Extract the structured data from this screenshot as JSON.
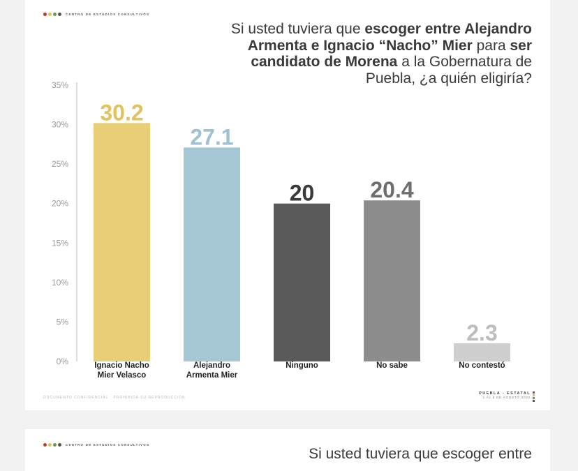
{
  "brand": {
    "name": "CENTRO DE ESTUDIOS CONSULTIVOS"
  },
  "title": {
    "prefix": "Si usted tuviera que ",
    "bold1": "escoger entre Alejandro Armenta e Ignacio “Nacho” Mier",
    "mid": " para ",
    "bold2": "ser candidato de Morena",
    "suffix": " a la Gobernatura de Puebla, ¿a quién eligiría?"
  },
  "footer": {
    "left": "DOCUMENTO CONFIDENCIAL · PROHIBIDA SU REPRODUCCIÓN",
    "right_line1": "PUEBLA - ESTATAL",
    "right_line2": "1 AL 5 DE AGOSTO 2022"
  },
  "next_slide": {
    "title_fragment": "Si usted tuviera que escoger entre"
  },
  "colors": {
    "brand_dots": [
      "#c0392b",
      "#e0c25a",
      "#6a9a4a",
      "#555555"
    ],
    "axis": "#bcbcbc",
    "label": "#222222"
  },
  "chart_data": {
    "type": "bar",
    "title": "Si usted tuviera que escoger entre Alejandro Armenta e Ignacio “Nacho” Mier para ser candidato de Morena a la Gobernatura de Puebla, ¿a quién eligiría?",
    "categories": [
      [
        "Ignacio Nacho",
        "Mier Velasco"
      ],
      [
        "Alejandro",
        "Armenta Mier"
      ],
      [
        "Ninguno"
      ],
      [
        "No sabe"
      ],
      [
        "No contestó"
      ]
    ],
    "values": [
      30.2,
      27.1,
      20,
      20.4,
      2.3
    ],
    "value_labels": [
      "30.2",
      "27.1",
      "20",
      "20.4",
      "2.3"
    ],
    "colors": [
      "#e8cf77",
      "#a6c8d4",
      "#5a5a5a",
      "#8d8d8d",
      "#cfcfcf"
    ],
    "label_colors": [
      "#e2c25c",
      "#a0c2d0",
      "#3a3a3a",
      "#6e6e6e",
      "#bdbdbd"
    ],
    "yticks": [
      "0%",
      "5%",
      "10%",
      "15%",
      "20%",
      "25%",
      "30%",
      "35%"
    ],
    "ylim": [
      0,
      35
    ],
    "xlabel": "",
    "ylabel": "",
    "grid": false
  }
}
